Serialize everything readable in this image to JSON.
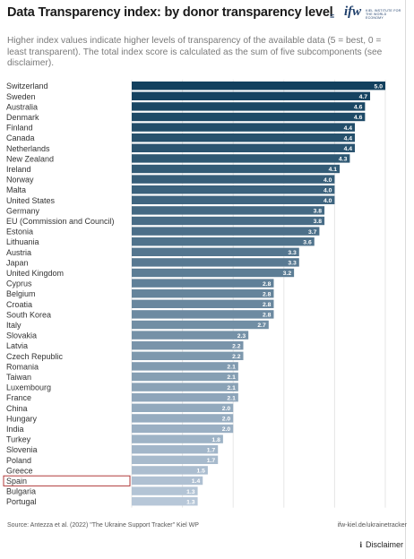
{
  "header": {
    "title": "Data Transparency index: by donor transparency level",
    "subtitle": "Higher index values indicate higher levels of transparency of the available data (5 = best, 0 = least transparent). The total index score is calculated as the sum of five subcomponents (see disclaimer).",
    "logo_text": "ifw",
    "logo_sub": "KIEL INSTITUTE FOR THE WORLD ECONOMY"
  },
  "chart_data": {
    "type": "bar",
    "orientation": "horizontal",
    "title": "Data Transparency index: by donor transparency level",
    "xlabel": "",
    "ylabel": "",
    "xlim": [
      0,
      5
    ],
    "grid": true,
    "highlighted_category": "Spain",
    "color_dark": "#12405e",
    "color_light": "#b7c7d8",
    "categories": [
      "Switzerland",
      "Sweden",
      "Australia",
      "Denmark",
      "Finland",
      "Canada",
      "Netherlands",
      "New Zealand",
      "Ireland",
      "Norway",
      "Malta",
      "United States",
      "Germany",
      "EU (Commission and Council)",
      "Estonia",
      "Lithuania",
      "Austria",
      "Japan",
      "United Kingdom",
      "Cyprus",
      "Belgium",
      "Croatia",
      "South Korea",
      "Italy",
      "Slovakia",
      "Latvia",
      "Czech Republic",
      "Romania",
      "Taiwan",
      "Luxembourg",
      "France",
      "China",
      "Hungary",
      "India",
      "Turkey",
      "Slovenia",
      "Poland",
      "Greece",
      "Spain",
      "Bulgaria",
      "Portugal"
    ],
    "values": [
      5.0,
      4.7,
      4.6,
      4.6,
      4.4,
      4.4,
      4.4,
      4.3,
      4.1,
      4.0,
      4.0,
      4.0,
      3.8,
      3.8,
      3.7,
      3.6,
      3.3,
      3.3,
      3.2,
      2.8,
      2.8,
      2.8,
      2.8,
      2.7,
      2.3,
      2.2,
      2.2,
      2.1,
      2.1,
      2.1,
      2.1,
      2.0,
      2.0,
      2.0,
      1.8,
      1.7,
      1.7,
      1.5,
      1.4,
      1.3,
      1.3
    ],
    "labels": [
      "5.0",
      "4.7",
      "4.6",
      "4.6",
      "4.4",
      "4.4",
      "4.4",
      "4.3",
      "4.1",
      "4.0",
      "4.0",
      "4.0",
      "3.8",
      "3.8",
      "3.7",
      "3.6",
      "3.3",
      "3.3",
      "3.2",
      "2.8",
      "2.8",
      "2.8",
      "2.8",
      "2.7",
      "2.3",
      "2.2",
      "2.2",
      "2.1",
      "2.1",
      "2.1",
      "2.1",
      "2.0",
      "2.0",
      "2.0",
      "1.8",
      "1.7",
      "1.7",
      "1.5",
      "1.4",
      "1.3",
      "1.3"
    ]
  },
  "footer": {
    "source": "Source: Antezza et al. (2022) \"The Ukraine Support Tracker\" Kiel WP",
    "link": "ifw-kiel.de/ukrainetracker",
    "disclaimer": "Disclaimer"
  }
}
